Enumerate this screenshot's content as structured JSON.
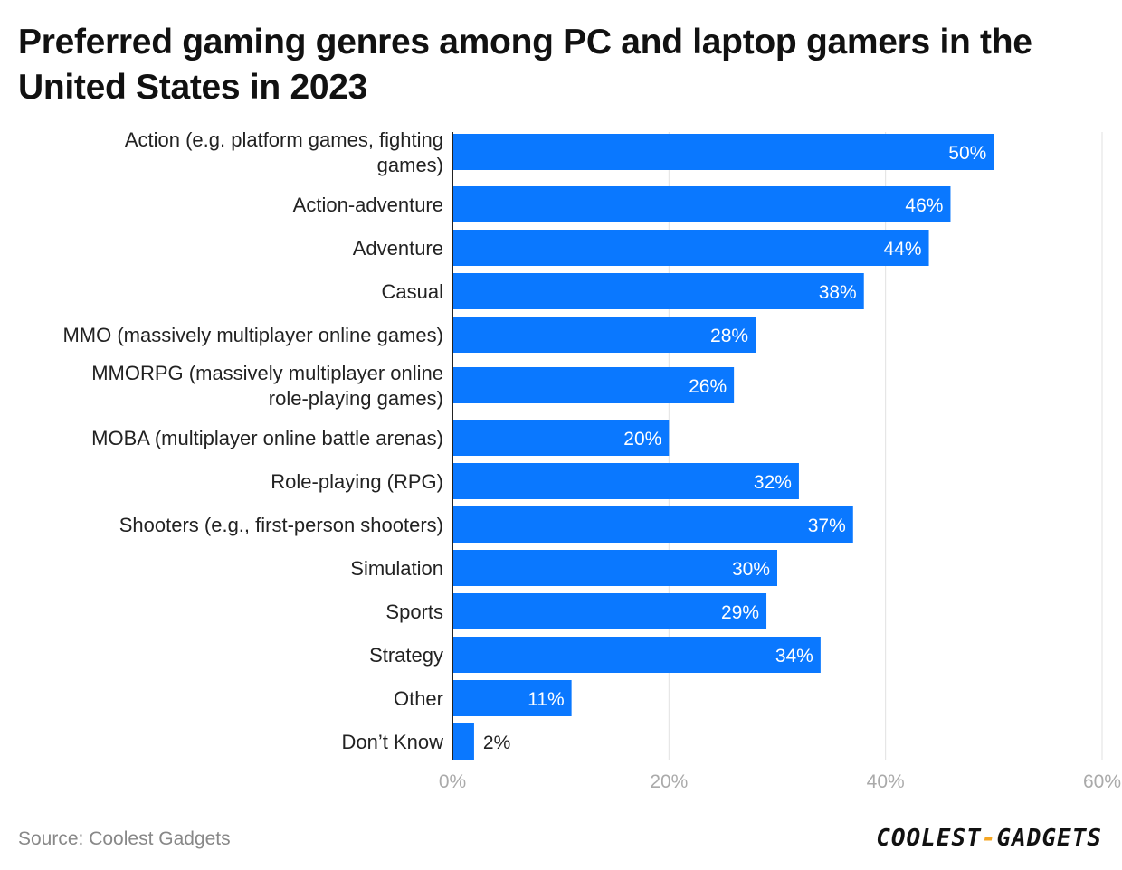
{
  "title": "Preferred gaming genres among PC and laptop gamers in the United States in 2023",
  "source": "Source: Coolest Gadgets",
  "logo": {
    "left": "COOLEST",
    "sep": "-",
    "right": "GADGETS"
  },
  "colors": {
    "bar": "#0a78ff",
    "grid": "#e2e2e2",
    "axis": "#222222"
  },
  "chart_data": {
    "type": "bar",
    "orientation": "horizontal",
    "categories": [
      "Action (e.g. platform games, fighting games)",
      "Action-adventure",
      "Adventure",
      "Casual",
      "MMO (massively multiplayer online games)",
      "MMORPG (massively multiplayer online role-playing games)",
      "MOBA (multiplayer online battle arenas)",
      "Role-playing (RPG)",
      "Shooters (e.g., first-person shooters)",
      "Simulation",
      "Sports",
      "Strategy",
      "Other",
      "Don’t Know"
    ],
    "values": [
      50,
      46,
      44,
      38,
      28,
      26,
      20,
      32,
      37,
      30,
      29,
      34,
      11,
      2
    ],
    "value_labels": [
      "50%",
      "46%",
      "44%",
      "38%",
      "28%",
      "26%",
      "20%",
      "32%",
      "37%",
      "30%",
      "29%",
      "34%",
      "11%",
      "2%"
    ],
    "xlim": [
      0,
      60
    ],
    "xticks": [
      0,
      20,
      40,
      60
    ],
    "xtick_labels": [
      "0%",
      "20%",
      "40%",
      "60%"
    ],
    "grid": true
  }
}
